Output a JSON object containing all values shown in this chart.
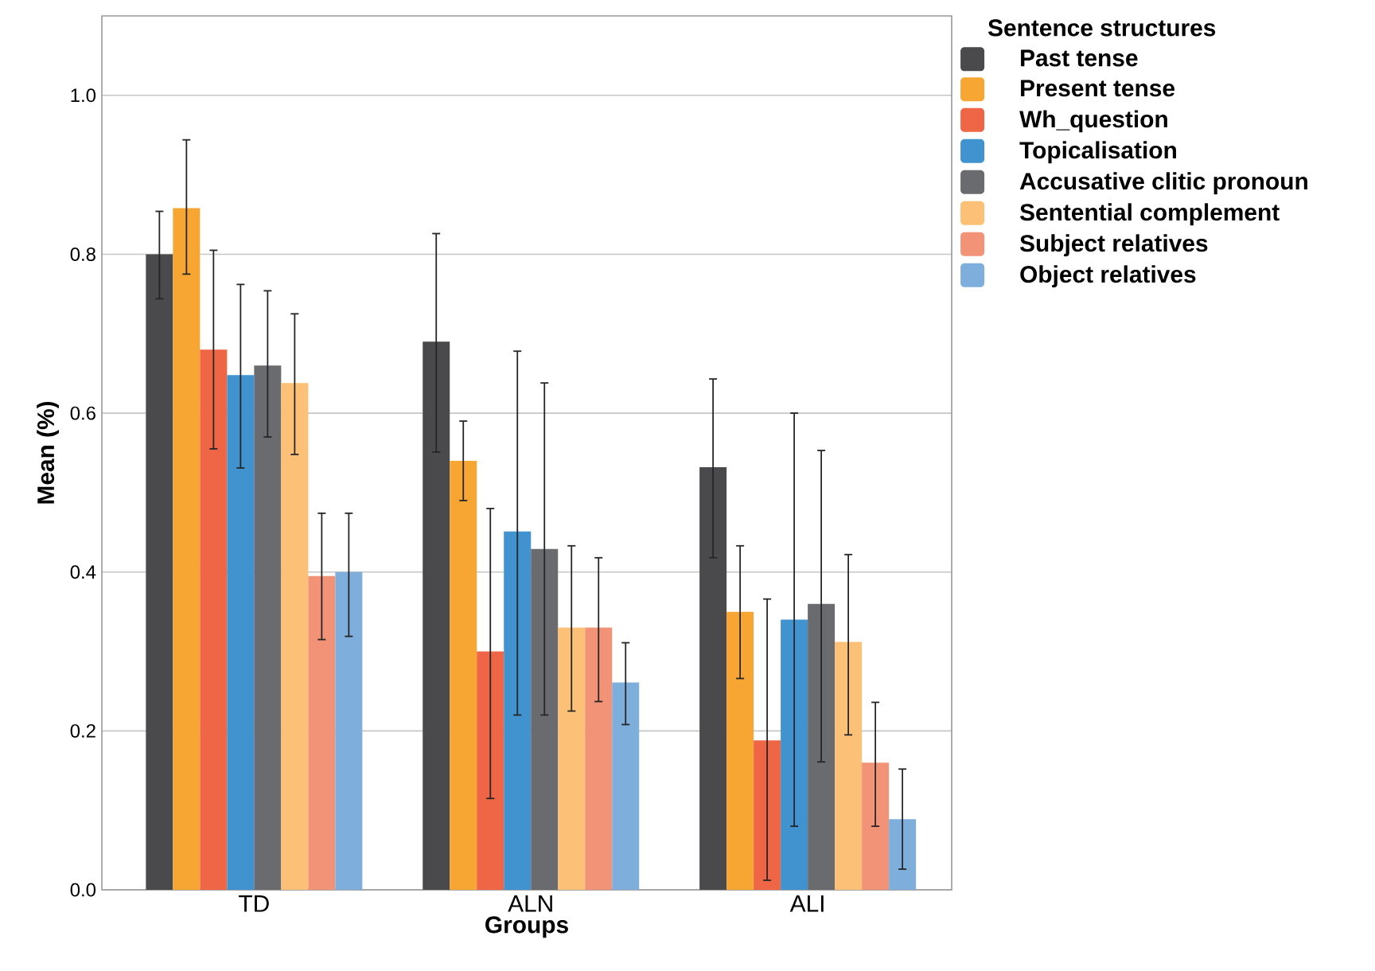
{
  "chart_data": {
    "type": "bar",
    "xlabel": "Groups",
    "ylabel": "Mean (%)",
    "legend_title": "Sentence structures",
    "categories": [
      "TD",
      "ALN",
      "ALI"
    ],
    "series": [
      {
        "name": "Past tense",
        "color": "#4a4a4c",
        "values": [
          0.8,
          0.69,
          0.532
        ],
        "errors": [
          [
            0.744,
            0.854
          ],
          [
            0.551,
            0.826
          ],
          [
            0.418,
            0.643
          ]
        ]
      },
      {
        "name": "Present tense",
        "color": "#f7a533",
        "values": [
          0.858,
          0.54,
          0.35
        ],
        "errors": [
          [
            0.775,
            0.944
          ],
          [
            0.49,
            0.59
          ],
          [
            0.266,
            0.433
          ]
        ]
      },
      {
        "name": "Wh_question",
        "color": "#ef6647",
        "values": [
          0.68,
          0.3,
          0.188
        ],
        "errors": [
          [
            0.555,
            0.805
          ],
          [
            0.115,
            0.48
          ],
          [
            0.012,
            0.366
          ]
        ]
      },
      {
        "name": "Topicalisation",
        "color": "#4193d0",
        "values": [
          0.648,
          0.451,
          0.34
        ],
        "errors": [
          [
            0.531,
            0.762
          ],
          [
            0.22,
            0.678
          ],
          [
            0.08,
            0.6
          ]
        ]
      },
      {
        "name": "Accusative clitic pronoun",
        "color": "#6a6b6f",
        "values": [
          0.66,
          0.429,
          0.36
        ],
        "errors": [
          [
            0.57,
            0.754
          ],
          [
            0.22,
            0.638
          ],
          [
            0.161,
            0.553
          ]
        ]
      },
      {
        "name": "Sentential complement",
        "color": "#fcc076",
        "values": [
          0.638,
          0.33,
          0.312
        ],
        "errors": [
          [
            0.548,
            0.725
          ],
          [
            0.225,
            0.433
          ],
          [
            0.195,
            0.422
          ]
        ]
      },
      {
        "name": "Subject relatives",
        "color": "#f29378",
        "values": [
          0.395,
          0.33,
          0.16
        ],
        "errors": [
          [
            0.315,
            0.474
          ],
          [
            0.237,
            0.418
          ],
          [
            0.08,
            0.236
          ]
        ]
      },
      {
        "name": "Object relatives",
        "color": "#7eaedc",
        "values": [
          0.4,
          0.261,
          0.089
        ],
        "errors": [
          [
            0.319,
            0.474
          ],
          [
            0.208,
            0.311
          ],
          [
            0.026,
            0.152
          ]
        ]
      }
    ],
    "ylim": [
      0,
      1.1
    ],
    "yticks": [
      {
        "value": 0,
        "label": "0.0"
      },
      {
        "value": 0.2,
        "label": "0.2"
      },
      {
        "value": 0.4,
        "label": "0.4"
      },
      {
        "value": 0.6,
        "label": "0.6"
      },
      {
        "value": 0.8,
        "label": "0.8"
      },
      {
        "value": 1.0,
        "label": "1.0"
      }
    ],
    "grid": "y",
    "legend": "right"
  }
}
